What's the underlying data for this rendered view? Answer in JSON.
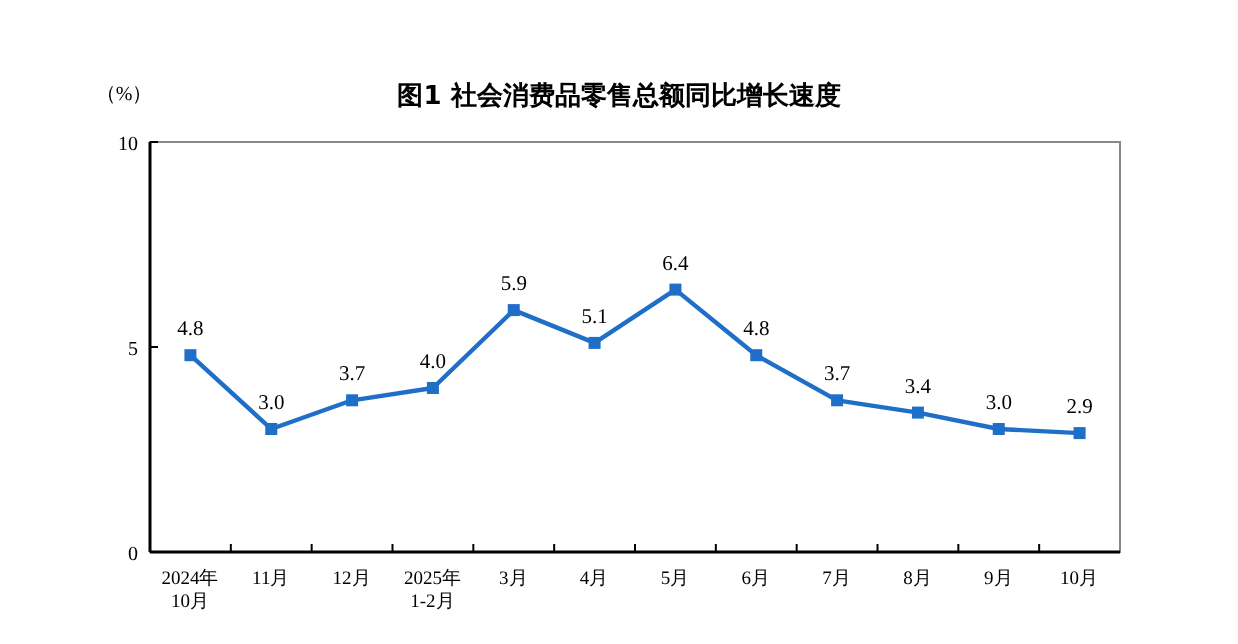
{
  "chart_data": {
    "type": "line",
    "title": "图1  社会消费品零售总额同比增长速度",
    "ylabel": "（%）",
    "categories": [
      "2024年\n10月",
      "11月",
      "12月",
      "2025年\n1-2月",
      "3月",
      "4月",
      "5月",
      "6月",
      "7月",
      "8月",
      "9月",
      "10月"
    ],
    "series": [
      {
        "color": "#1f6fc8",
        "values": [
          4.8,
          3.0,
          3.7,
          4.0,
          5.9,
          5.1,
          6.4,
          4.8,
          3.7,
          3.4,
          3.0,
          2.9
        ],
        "value_labels": [
          "4.8",
          "3.0",
          "3.7",
          "4.0",
          "5.9",
          "5.1",
          "6.4",
          "4.8",
          "3.7",
          "3.4",
          "3.0",
          "2.9"
        ]
      }
    ],
    "ylim": [
      0,
      10
    ],
    "yticks": [
      0,
      5,
      10
    ],
    "marker": "square",
    "line_style": "solid"
  }
}
